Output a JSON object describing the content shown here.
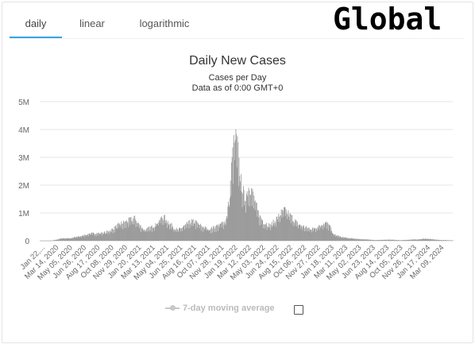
{
  "tabs": [
    {
      "label": "daily",
      "active": true
    },
    {
      "label": "linear",
      "active": false
    },
    {
      "label": "logarithmic",
      "active": false
    }
  ],
  "header_text": "Global",
  "accent_color": "#36a3e6",
  "legend": {
    "label": "7-day moving average",
    "checked": false
  },
  "chart_data": {
    "type": "bar",
    "title": "Daily New Cases",
    "subtitle": "Cases per Day",
    "subtitle2": "Data as of 0:00 GMT+0",
    "bar_color": "#999999",
    "grid": true,
    "ylim": [
      0,
      5000000
    ],
    "yticks": [
      {
        "value": 0,
        "label": "0"
      },
      {
        "value": 1000000,
        "label": "1M"
      },
      {
        "value": 2000000,
        "label": "2M"
      },
      {
        "value": 3000000,
        "label": "3M"
      },
      {
        "value": 4000000,
        "label": "4M"
      },
      {
        "value": 5000000,
        "label": "5M"
      }
    ],
    "x_start": "2020-01-22",
    "x_end": "2024-04-14",
    "xticks": [
      "Jan 22,...",
      "Mar 14, 2020",
      "May 05, 2020",
      "Jun 26, 2020",
      "Aug 17, 2020",
      "Oct 08, 2020",
      "Nov 29, 2020",
      "Jan 20, 2021",
      "Mar 13, 2021",
      "May 04, 2021",
      "Jun 25, 2021",
      "Aug 16, 2021",
      "Oct 07, 2021",
      "Nov 28, 2021",
      "Jan 19, 2022",
      "Mar 12, 2022",
      "May 03, 2022",
      "Jun 24, 2022",
      "Aug 15, 2022",
      "Oct 06, 2022",
      "Nov 27, 2022",
      "Jan 18, 2023",
      "Mar 11, 2023",
      "May 02, 2023",
      "Jun 23, 2023",
      "Aug 14, 2023",
      "Oct 05, 2023",
      "Nov 26, 2023",
      "Jan 17, 2024",
      "Mar 09, 2024"
    ],
    "series": [
      {
        "name": "Daily Cases",
        "points": [
          [
            "2020-01-22",
            500
          ],
          [
            "2020-03-01",
            2000
          ],
          [
            "2020-03-20",
            30000
          ],
          [
            "2020-04-10",
            85000
          ],
          [
            "2020-05-15",
            95000
          ],
          [
            "2020-06-20",
            160000
          ],
          [
            "2020-07-25",
            260000
          ],
          [
            "2020-08-25",
            270000
          ],
          [
            "2020-09-25",
            310000
          ],
          [
            "2020-10-20",
            420000
          ],
          [
            "2020-11-15",
            600000
          ],
          [
            "2020-12-10",
            680000
          ],
          [
            "2021-01-08",
            820000
          ],
          [
            "2021-02-05",
            480000
          ],
          [
            "2021-02-20",
            390000
          ],
          [
            "2021-03-20",
            520000
          ],
          [
            "2021-04-15",
            780000
          ],
          [
            "2021-04-28",
            860000
          ],
          [
            "2021-05-20",
            620000
          ],
          [
            "2021-06-20",
            380000
          ],
          [
            "2021-07-15",
            530000
          ],
          [
            "2021-08-10",
            700000
          ],
          [
            "2021-08-25",
            670000
          ],
          [
            "2021-09-20",
            500000
          ],
          [
            "2021-10-20",
            420000
          ],
          [
            "2021-11-20",
            560000
          ],
          [
            "2021-12-15",
            700000
          ],
          [
            "2021-12-30",
            1500000
          ],
          [
            "2022-01-10",
            3000000
          ],
          [
            "2022-01-20",
            3750000
          ],
          [
            "2022-01-30",
            3300000
          ],
          [
            "2022-02-10",
            2200000
          ],
          [
            "2022-02-25",
            1500000
          ],
          [
            "2022-03-15",
            2000000
          ],
          [
            "2022-03-30",
            1600000
          ],
          [
            "2022-04-20",
            900000
          ],
          [
            "2022-05-10",
            650000
          ],
          [
            "2022-06-01",
            550000
          ],
          [
            "2022-06-25",
            800000
          ],
          [
            "2022-07-15",
            1050000
          ],
          [
            "2022-07-25",
            1120000
          ],
          [
            "2022-08-15",
            900000
          ],
          [
            "2022-09-10",
            620000
          ],
          [
            "2022-10-10",
            480000
          ],
          [
            "2022-11-05",
            430000
          ],
          [
            "2022-11-25",
            520000
          ],
          [
            "2022-12-20",
            650000
          ],
          [
            "2023-01-05",
            580000
          ],
          [
            "2023-01-25",
            220000
          ],
          [
            "2023-02-20",
            140000
          ],
          [
            "2023-03-20",
            95000
          ],
          [
            "2023-05-01",
            60000
          ],
          [
            "2023-07-01",
            25000
          ],
          [
            "2023-08-20",
            40000
          ],
          [
            "2023-10-01",
            20000
          ],
          [
            "2023-12-10",
            55000
          ],
          [
            "2024-01-01",
            75000
          ],
          [
            "2024-02-01",
            45000
          ],
          [
            "2024-03-01",
            25000
          ],
          [
            "2024-04-14",
            15000
          ]
        ]
      }
    ]
  }
}
